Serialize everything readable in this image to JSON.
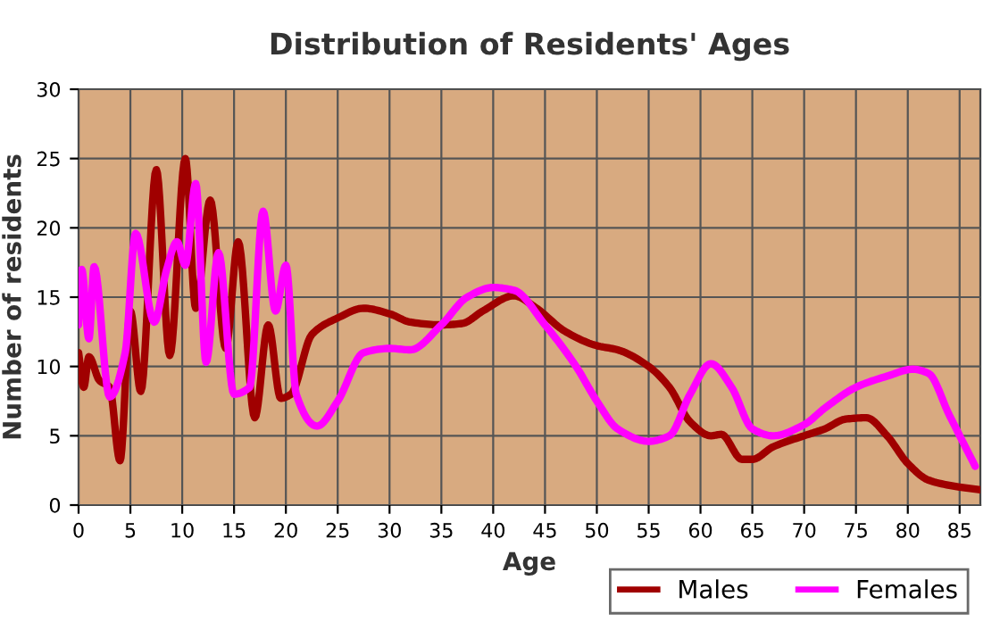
{
  "chart_data": {
    "type": "line",
    "title": "Distribution of Residents' Ages",
    "xlabel": "Age",
    "ylabel": "Number of residents",
    "xlim": [
      0,
      87
    ],
    "xticks": [
      0,
      5,
      10,
      15,
      20,
      25,
      30,
      35,
      40,
      45,
      50,
      55,
      60,
      65,
      70,
      75,
      80,
      85
    ],
    "ylim": [
      0,
      30
    ],
    "yticks": [
      0,
      5,
      10,
      15,
      20,
      25,
      30
    ],
    "grid": true,
    "legend": "bottom right",
    "line_style": "solid",
    "marker": "none",
    "series": [
      {
        "name": "Males",
        "color": "#a00000",
        "x": [
          0,
          0.5,
          1,
          2,
          3,
          4,
          5,
          6,
          7.5,
          8.8,
          10.3,
          11.3,
          12.7,
          14.2,
          15.4,
          17,
          18.3,
          19.5,
          20.5,
          22.5,
          25,
          27.5,
          30,
          32,
          35,
          37,
          39,
          42,
          44,
          47,
          50,
          52,
          55,
          57,
          59,
          61,
          62,
          64,
          65,
          67,
          70,
          72,
          74,
          76,
          78,
          80,
          82,
          85,
          87
        ],
        "values": [
          11,
          8.5,
          10.7,
          9,
          8.5,
          3.2,
          14,
          8.2,
          24.2,
          10.8,
          25,
          14.2,
          22,
          11.3,
          19,
          6.3,
          13,
          7.7,
          8,
          12.3,
          13.5,
          14.2,
          13.8,
          13.2,
          13,
          13.1,
          14,
          15.1,
          14.3,
          12.5,
          11.5,
          11.2,
          10,
          8.5,
          6,
          5,
          5.1,
          3.3,
          3.3,
          4.2,
          5,
          5.5,
          6.2,
          6.3,
          5,
          3,
          1.8,
          1.3,
          1.1
        ]
      },
      {
        "name": "Females",
        "color": "#ff00ff",
        "x": [
          0,
          0.3,
          1,
          1.5,
          3,
          4.5,
          5.5,
          7.3,
          8.5,
          9.5,
          10.3,
          11.3,
          12.3,
          13.5,
          15,
          16.5,
          17.8,
          19,
          20,
          21,
          23,
          25,
          27.5,
          30,
          32,
          35,
          37.5,
          40,
          42,
          45,
          48,
          50,
          52,
          55,
          57,
          59,
          61,
          63,
          65,
          67,
          70,
          72,
          75,
          78,
          80.5,
          82,
          84,
          86.5
        ],
        "values": [
          13,
          17,
          12,
          17.2,
          7.8,
          11,
          19.6,
          13.2,
          17,
          19,
          17.3,
          23.2,
          10.3,
          18.2,
          8,
          8.5,
          21.2,
          14,
          17.3,
          8,
          5.7,
          7.5,
          11,
          11.3,
          11.2,
          13,
          15,
          15.7,
          15.5,
          13,
          10,
          7.5,
          5.5,
          4.6,
          5,
          8,
          10.2,
          8.5,
          5.5,
          5,
          5.8,
          7,
          8.5,
          9.3,
          9.8,
          9.5,
          6.5,
          2.8
        ]
      }
    ]
  }
}
